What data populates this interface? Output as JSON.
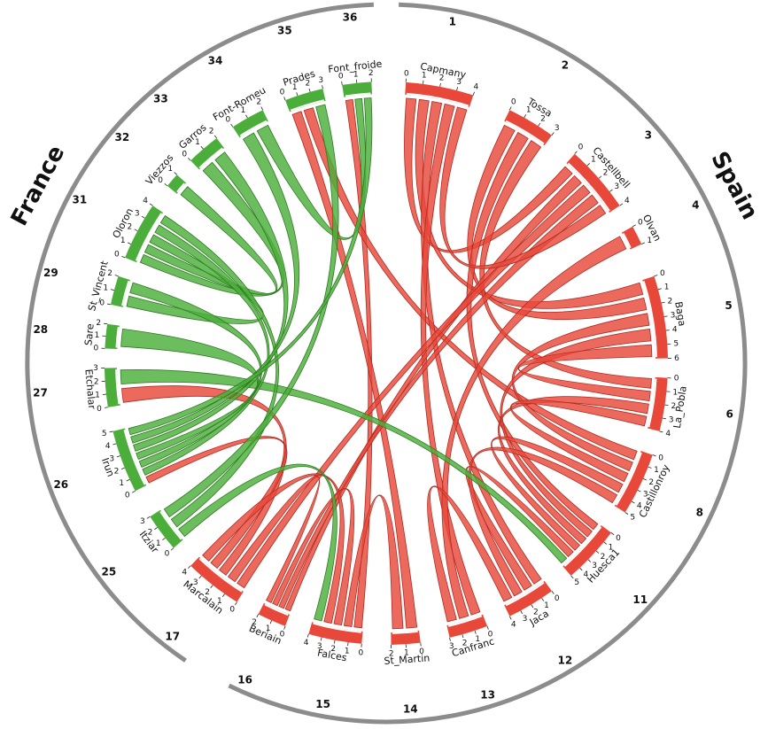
{
  "regions": {
    "left": {
      "label": "France",
      "color": "#4cae3a"
    },
    "right": {
      "label": "Spain",
      "color": "#e8483a"
    }
  },
  "stations": [
    {
      "num": "1",
      "name": "Capmany",
      "side": "Spain",
      "ticks": [
        "0",
        "1",
        "2",
        "3",
        "4"
      ]
    },
    {
      "num": "2",
      "name": "Tossa",
      "side": "Spain",
      "ticks": [
        "0",
        "1",
        "2",
        "3"
      ]
    },
    {
      "num": "3",
      "name": "Castellbell",
      "side": "Spain",
      "ticks": [
        "0",
        "1",
        "2",
        "3",
        "4"
      ]
    },
    {
      "num": "4",
      "name": "Olvan",
      "side": "Spain",
      "ticks": [
        "0",
        "1"
      ]
    },
    {
      "num": "5",
      "name": "Baga",
      "side": "Spain",
      "ticks": [
        "0",
        "1",
        "2",
        "3",
        "4",
        "5",
        "6"
      ]
    },
    {
      "num": "6",
      "name": "La_Pobla",
      "side": "Spain",
      "ticks": [
        "0",
        "1",
        "2",
        "3",
        "4"
      ]
    },
    {
      "num": "8",
      "name": "Castillonroy",
      "side": "Spain",
      "ticks": [
        "0",
        "1",
        "2",
        "3",
        "4",
        "5"
      ]
    },
    {
      "num": "11",
      "name": "Huesca1",
      "side": "Spain",
      "ticks": [
        "0",
        "1",
        "2",
        "3",
        "4",
        "5"
      ]
    },
    {
      "num": "12",
      "name": "Jaca",
      "side": "Spain",
      "ticks": [
        "0",
        "1",
        "2",
        "3",
        "4"
      ]
    },
    {
      "num": "13",
      "name": "Canfranc",
      "side": "Spain",
      "ticks": [
        "0",
        "1",
        "2",
        "3"
      ]
    },
    {
      "num": "14",
      "name": "St_Martin",
      "side": "Spain",
      "ticks": [
        "0",
        "1",
        "2"
      ]
    },
    {
      "num": "15",
      "name": "Falces",
      "side": "Spain",
      "ticks": [
        "0",
        "1",
        "2",
        "3",
        "4"
      ]
    },
    {
      "num": "16",
      "name": "Beriain",
      "side": "Spain",
      "ticks": [
        "0",
        "1",
        "2"
      ]
    },
    {
      "num": "17",
      "name": "Marcalain",
      "side": "Spain",
      "ticks": [
        "0",
        "1",
        "2",
        "3",
        "4"
      ]
    },
    {
      "num": "25",
      "name": "Itziar",
      "side": "France",
      "ticks": [
        "0",
        "1",
        "2",
        "3"
      ]
    },
    {
      "num": "26",
      "name": "Irun",
      "side": "France",
      "ticks": [
        "0",
        "1",
        "2",
        "3",
        "4",
        "5"
      ]
    },
    {
      "num": "27",
      "name": "Etchalar",
      "side": "France",
      "ticks": [
        "0",
        "1",
        "2",
        "3"
      ]
    },
    {
      "num": "28",
      "name": "Sare",
      "side": "France",
      "ticks": [
        "0",
        "1",
        "2"
      ]
    },
    {
      "num": "29",
      "name": "St_Vincent",
      "side": "France",
      "ticks": [
        "0",
        "1",
        "2"
      ]
    },
    {
      "num": "31",
      "name": "Oloron",
      "side": "France",
      "ticks": [
        "0",
        "1",
        "2",
        "3",
        "4"
      ]
    },
    {
      "num": "32",
      "name": "Viezzos",
      "side": "France",
      "ticks": [
        "0",
        "1"
      ]
    },
    {
      "num": "33",
      "name": "Garros",
      "side": "France",
      "ticks": [
        "0",
        "1",
        "2"
      ]
    },
    {
      "num": "34",
      "name": "Font-Romeu",
      "side": "France",
      "ticks": [
        "0",
        "1",
        "2"
      ]
    },
    {
      "num": "35",
      "name": "Prades",
      "side": "France",
      "ticks": [
        "0",
        "1",
        "2",
        "3"
      ]
    },
    {
      "num": "36",
      "name": "Font_froide",
      "side": "France",
      "ticks": [
        "0",
        "1",
        "2"
      ]
    }
  ],
  "links": [
    {
      "from": "36",
      "to": "15",
      "color": "red"
    },
    {
      "from": "35",
      "to": "14",
      "color": "red"
    },
    {
      "from": "35",
      "to": "8",
      "color": "red"
    },
    {
      "from": "1",
      "to": "3",
      "color": "red"
    },
    {
      "from": "1",
      "to": "5",
      "color": "red"
    },
    {
      "from": "1",
      "to": "12",
      "color": "red"
    },
    {
      "from": "1",
      "to": "13",
      "color": "red"
    },
    {
      "from": "2",
      "to": "5",
      "color": "red"
    },
    {
      "from": "2",
      "to": "11",
      "color": "red"
    },
    {
      "from": "2",
      "to": "6",
      "color": "red"
    },
    {
      "from": "3",
      "to": "16",
      "color": "red"
    },
    {
      "from": "3",
      "to": "17",
      "color": "red"
    },
    {
      "from": "3",
      "to": "16",
      "color": "red"
    },
    {
      "from": "3",
      "to": "1",
      "color": "red"
    },
    {
      "from": "4",
      "to": "13",
      "color": "red"
    },
    {
      "from": "5",
      "to": "8",
      "color": "red"
    },
    {
      "from": "5",
      "to": "11",
      "color": "red"
    },
    {
      "from": "5",
      "to": "6",
      "color": "red"
    },
    {
      "from": "6",
      "to": "11",
      "color": "red"
    },
    {
      "from": "6",
      "to": "8",
      "color": "red"
    },
    {
      "from": "8",
      "to": "11",
      "color": "red"
    },
    {
      "from": "11",
      "to": "12",
      "color": "red"
    },
    {
      "from": "12",
      "to": "8",
      "color": "red"
    },
    {
      "from": "13",
      "to": "12",
      "color": "red"
    },
    {
      "from": "14",
      "to": "15",
      "color": "red"
    },
    {
      "from": "15",
      "to": "16",
      "color": "red"
    },
    {
      "from": "16",
      "to": "17",
      "color": "red"
    },
    {
      "from": "17",
      "to": "27",
      "color": "red"
    },
    {
      "from": "17",
      "to": "26",
      "color": "red"
    },
    {
      "from": "17",
      "to": "15",
      "color": "red"
    },
    {
      "from": "27",
      "to": "11",
      "color": "green"
    },
    {
      "from": "25",
      "to": "15",
      "color": "green"
    },
    {
      "from": "31",
      "to": "33",
      "color": "green"
    },
    {
      "from": "31",
      "to": "32",
      "color": "green"
    },
    {
      "from": "31",
      "to": "29",
      "color": "green"
    },
    {
      "from": "31",
      "to": "26",
      "color": "green"
    },
    {
      "from": "31",
      "to": "25",
      "color": "green"
    },
    {
      "from": "29",
      "to": "26",
      "color": "green"
    },
    {
      "from": "28",
      "to": "26",
      "color": "green"
    },
    {
      "from": "33",
      "to": "26",
      "color": "green"
    },
    {
      "from": "34",
      "to": "26",
      "color": "green"
    },
    {
      "from": "34",
      "to": "36",
      "color": "green"
    },
    {
      "from": "35",
      "to": "25",
      "color": "green"
    },
    {
      "from": "36",
      "to": "26",
      "color": "green"
    }
  ]
}
